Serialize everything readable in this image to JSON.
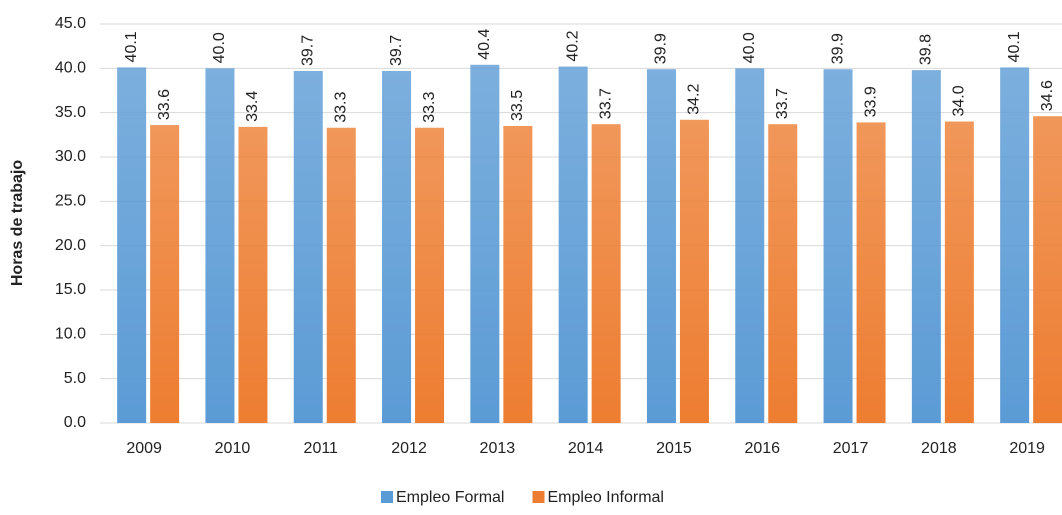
{
  "chart_data": {
    "type": "bar",
    "y_label": "Horas de trabajo",
    "categories": [
      "2009",
      "2010",
      "2011",
      "2012",
      "2013",
      "2014",
      "2015",
      "2016",
      "2017",
      "2018",
      "2019"
    ],
    "series": [
      {
        "name": "Empleo Formal",
        "color": "#5b9bd5",
        "values": [
          40.1,
          40.0,
          39.7,
          39.7,
          40.4,
          40.2,
          39.9,
          40.0,
          39.9,
          39.8,
          40.1
        ],
        "value_labels": [
          "40.1",
          "40.0",
          "39.7",
          "39.7",
          "40.4",
          "40.2",
          "39.9",
          "40.0",
          "39.9",
          "39.8",
          "40.1"
        ]
      },
      {
        "name": "Empleo Informal",
        "color": "#ed7d31",
        "values": [
          33.6,
          33.4,
          33.3,
          33.3,
          33.5,
          33.7,
          34.2,
          33.7,
          33.9,
          34.0,
          34.6
        ],
        "value_labels": [
          "33.6",
          "33.4",
          "33.3",
          "33.3",
          "33.5",
          "33.7",
          "34.2",
          "33.7",
          "33.9",
          "34.0",
          "34.6"
        ]
      }
    ],
    "ylim": [
      0,
      45
    ],
    "yticks": [
      {
        "value": 0,
        "label": "0.0"
      },
      {
        "value": 5,
        "label": "5.0"
      },
      {
        "value": 10,
        "label": "10.0"
      },
      {
        "value": 15,
        "label": "15.0"
      },
      {
        "value": 20,
        "label": "20.0"
      },
      {
        "value": 25,
        "label": "25.0"
      },
      {
        "value": 30,
        "label": "30.0"
      },
      {
        "value": 35,
        "label": "35.0"
      },
      {
        "value": 40,
        "label": "40.0"
      },
      {
        "value": 45,
        "label": "45.0"
      }
    ],
    "grid": true,
    "legend": "bottom"
  }
}
